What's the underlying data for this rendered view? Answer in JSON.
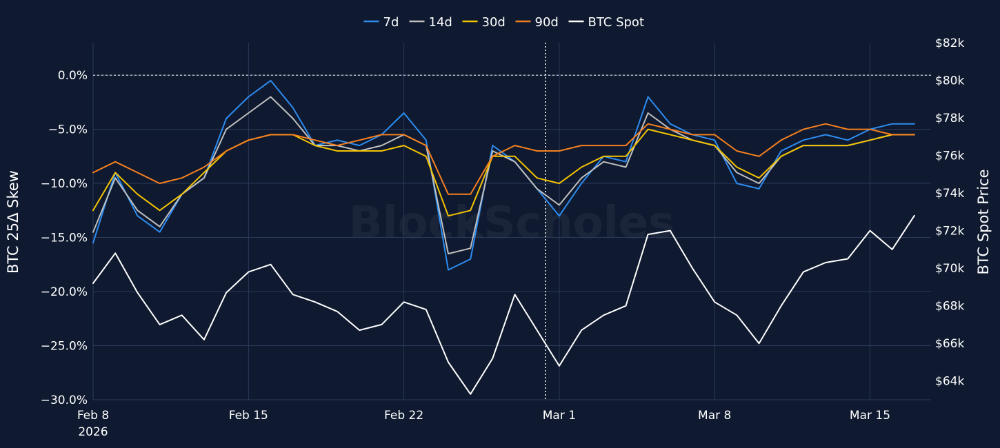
{
  "chart_data": {
    "type": "line",
    "watermark": "BlockScholes",
    "legend_position": "top-center",
    "grid": true,
    "colors": {
      "background": "#0f1a30",
      "grid": "#2b3a5a"
    },
    "x_axis": {
      "ticks": [
        {
          "date": "2026-02-08",
          "label": "Feb 8",
          "sublabel": "2026"
        },
        {
          "date": "2026-02-15",
          "label": "Feb 15"
        },
        {
          "date": "2026-02-22",
          "label": "Feb 22"
        },
        {
          "date": "2026-03-01",
          "label": "Mar 1"
        },
        {
          "date": "2026-03-08",
          "label": "Mar 8"
        },
        {
          "date": "2026-03-15",
          "label": "Mar 15"
        }
      ],
      "range": [
        "2026-02-08",
        "2026-03-17T18:00"
      ]
    },
    "y_left": {
      "title": "BTC 25Δ Skew",
      "range": [
        -30,
        3
      ],
      "ticks": [
        {
          "value": 0,
          "label": "0.0%"
        },
        {
          "value": -5,
          "label": "−5.0%"
        },
        {
          "value": -10,
          "label": "−10.0%"
        },
        {
          "value": -15,
          "label": "−15.0%"
        },
        {
          "value": -20,
          "label": "−20.0%"
        },
        {
          "value": -25,
          "label": "−25.0%"
        },
        {
          "value": -30,
          "label": "−30.0%"
        }
      ]
    },
    "y_right": {
      "title": "BTC Spot Price",
      "range": [
        63000,
        82000
      ],
      "ticks": [
        {
          "value": 82000,
          "label": "$82k"
        },
        {
          "value": 80000,
          "label": "$80k"
        },
        {
          "value": 78000,
          "label": "$78k"
        },
        {
          "value": 76000,
          "label": "$76k"
        },
        {
          "value": 74000,
          "label": "$74k"
        },
        {
          "value": 72000,
          "label": "$72k"
        },
        {
          "value": 70000,
          "label": "$70k"
        },
        {
          "value": 68000,
          "label": "$68k"
        },
        {
          "value": 66000,
          "label": "$66k"
        },
        {
          "value": 64000,
          "label": "$64k"
        }
      ]
    },
    "reference_lines": [
      {
        "axis": "y_left",
        "value": 0,
        "style": "dotted"
      },
      {
        "axis": "x",
        "date": "2026-02-28T09:00",
        "style": "dotted"
      }
    ],
    "series": [
      {
        "name": "7d",
        "axis": "y_left",
        "color": "#2d8cf0",
        "x": [
          "2026-02-08",
          "2026-02-09",
          "2026-02-10",
          "2026-02-11",
          "2026-02-12",
          "2026-02-13",
          "2026-02-14",
          "2026-02-15",
          "2026-02-16",
          "2026-02-17",
          "2026-02-18",
          "2026-02-19",
          "2026-02-20",
          "2026-02-21",
          "2026-02-22",
          "2026-02-23",
          "2026-02-24",
          "2026-02-25",
          "2026-02-26",
          "2026-02-27",
          "2026-02-28",
          "2026-03-01",
          "2026-03-02",
          "2026-03-03",
          "2026-03-04",
          "2026-03-05",
          "2026-03-06",
          "2026-03-07",
          "2026-03-08",
          "2026-03-09",
          "2026-03-10",
          "2026-03-11",
          "2026-03-12",
          "2026-03-13",
          "2026-03-14",
          "2026-03-15",
          "2026-03-16",
          "2026-03-17"
        ],
        "values": [
          -15.5,
          -9.0,
          -13.0,
          -14.5,
          -11.0,
          -9.5,
          -4.0,
          -2.0,
          -0.5,
          -3.0,
          -6.5,
          -6.0,
          -6.5,
          -5.5,
          -3.5,
          -6.0,
          -18.0,
          -17.0,
          -6.5,
          -8.0,
          -10.5,
          -13.0,
          -10.0,
          -7.5,
          -8.0,
          -2.0,
          -4.5,
          -5.5,
          -6.0,
          -10.0,
          -10.5,
          -7.0,
          -6.0,
          -5.5,
          -6.0,
          -5.0,
          -4.5,
          -4.5
        ]
      },
      {
        "name": "14d",
        "axis": "y_left",
        "color": "#c0c0c0",
        "x": [
          "2026-02-08",
          "2026-02-09",
          "2026-02-10",
          "2026-02-11",
          "2026-02-12",
          "2026-02-13",
          "2026-02-14",
          "2026-02-15",
          "2026-02-16",
          "2026-02-17",
          "2026-02-18",
          "2026-02-19",
          "2026-02-20",
          "2026-02-21",
          "2026-02-22",
          "2026-02-23",
          "2026-02-24",
          "2026-02-25",
          "2026-02-26",
          "2026-02-27",
          "2026-02-28",
          "2026-03-01",
          "2026-03-02",
          "2026-03-03",
          "2026-03-04",
          "2026-03-05",
          "2026-03-06",
          "2026-03-07",
          "2026-03-08",
          "2026-03-09",
          "2026-03-10",
          "2026-03-11",
          "2026-03-12",
          "2026-03-13",
          "2026-03-14",
          "2026-03-15",
          "2026-03-16",
          "2026-03-17"
        ],
        "values": [
          -14.5,
          -9.5,
          -12.5,
          -14.0,
          -11.0,
          -9.5,
          -5.0,
          -3.5,
          -2.0,
          -4.0,
          -6.5,
          -6.5,
          -7.0,
          -6.5,
          -5.5,
          -6.5,
          -16.5,
          -16.0,
          -7.0,
          -8.0,
          -10.5,
          -12.0,
          -9.5,
          -8.0,
          -8.5,
          -3.5,
          -5.0,
          -6.0,
          -6.5,
          -9.0,
          -10.0,
          -7.5,
          -6.5,
          -6.5,
          -6.5,
          -6.0,
          -5.5,
          -5.5
        ]
      },
      {
        "name": "30d",
        "axis": "y_left",
        "color": "#f5c400",
        "x": [
          "2026-02-08",
          "2026-02-09",
          "2026-02-10",
          "2026-02-11",
          "2026-02-12",
          "2026-02-13",
          "2026-02-14",
          "2026-02-15",
          "2026-02-16",
          "2026-02-17",
          "2026-02-18",
          "2026-02-19",
          "2026-02-20",
          "2026-02-21",
          "2026-02-22",
          "2026-02-23",
          "2026-02-24",
          "2026-02-25",
          "2026-02-26",
          "2026-02-27",
          "2026-02-28",
          "2026-03-01",
          "2026-03-02",
          "2026-03-03",
          "2026-03-04",
          "2026-03-05",
          "2026-03-06",
          "2026-03-07",
          "2026-03-08",
          "2026-03-09",
          "2026-03-10",
          "2026-03-11",
          "2026-03-12",
          "2026-03-13",
          "2026-03-14",
          "2026-03-15",
          "2026-03-16",
          "2026-03-17"
        ],
        "values": [
          -12.5,
          -9.0,
          -11.0,
          -12.5,
          -11.0,
          -9.0,
          -7.0,
          -6.0,
          -5.5,
          -5.5,
          -6.5,
          -7.0,
          -7.0,
          -7.0,
          -6.5,
          -7.5,
          -13.0,
          -12.5,
          -7.5,
          -7.5,
          -9.5,
          -10.0,
          -8.5,
          -7.5,
          -7.5,
          -5.0,
          -5.5,
          -6.0,
          -6.5,
          -8.5,
          -9.5,
          -7.5,
          -6.5,
          -6.5,
          -6.5,
          -6.0,
          -5.5,
          -5.5
        ]
      },
      {
        "name": "90d",
        "axis": "y_left",
        "color": "#f7801e",
        "x": [
          "2026-02-08",
          "2026-02-09",
          "2026-02-10",
          "2026-02-11",
          "2026-02-12",
          "2026-02-13",
          "2026-02-14",
          "2026-02-15",
          "2026-02-16",
          "2026-02-17",
          "2026-02-18",
          "2026-02-19",
          "2026-02-20",
          "2026-02-21",
          "2026-02-22",
          "2026-02-23",
          "2026-02-24",
          "2026-02-25",
          "2026-02-26",
          "2026-02-27",
          "2026-02-28",
          "2026-03-01",
          "2026-03-02",
          "2026-03-03",
          "2026-03-04",
          "2026-03-05",
          "2026-03-06",
          "2026-03-07",
          "2026-03-08",
          "2026-03-09",
          "2026-03-10",
          "2026-03-11",
          "2026-03-12",
          "2026-03-13",
          "2026-03-14",
          "2026-03-15",
          "2026-03-16",
          "2026-03-17"
        ],
        "values": [
          -9.0,
          -8.0,
          -9.0,
          -10.0,
          -9.5,
          -8.5,
          -7.0,
          -6.0,
          -5.5,
          -5.5,
          -6.0,
          -6.5,
          -6.0,
          -5.5,
          -5.5,
          -6.5,
          -11.0,
          -11.0,
          -7.5,
          -6.5,
          -7.0,
          -7.0,
          -6.5,
          -6.5,
          -6.5,
          -4.5,
          -5.0,
          -5.5,
          -5.5,
          -7.0,
          -7.5,
          -6.0,
          -5.0,
          -4.5,
          -5.0,
          -5.0,
          -5.5,
          -5.5
        ]
      },
      {
        "name": "BTC Spot",
        "axis": "y_right",
        "color": "#ffffff",
        "x": [
          "2026-02-08",
          "2026-02-09",
          "2026-02-10",
          "2026-02-11",
          "2026-02-12",
          "2026-02-13",
          "2026-02-14",
          "2026-02-15",
          "2026-02-16",
          "2026-02-17",
          "2026-02-18",
          "2026-02-19",
          "2026-02-20",
          "2026-02-21",
          "2026-02-22",
          "2026-02-23",
          "2026-02-24",
          "2026-02-25",
          "2026-02-26",
          "2026-02-27",
          "2026-02-28",
          "2026-03-01",
          "2026-03-02",
          "2026-03-03",
          "2026-03-04",
          "2026-03-05",
          "2026-03-06",
          "2026-03-07",
          "2026-03-08",
          "2026-03-09",
          "2026-03-10",
          "2026-03-11",
          "2026-03-12",
          "2026-03-13",
          "2026-03-14",
          "2026-03-15",
          "2026-03-16",
          "2026-03-17"
        ],
        "values": [
          69200,
          70800,
          68700,
          67000,
          67500,
          66200,
          68700,
          69800,
          70200,
          68600,
          68200,
          67700,
          66700,
          67000,
          68200,
          67800,
          65000,
          63300,
          65200,
          68600,
          66700,
          64800,
          66700,
          67500,
          68000,
          71800,
          72000,
          70000,
          68200,
          67500,
          66000,
          68000,
          69800,
          70300,
          70500,
          72000,
          71000,
          72800
        ]
      }
    ]
  }
}
